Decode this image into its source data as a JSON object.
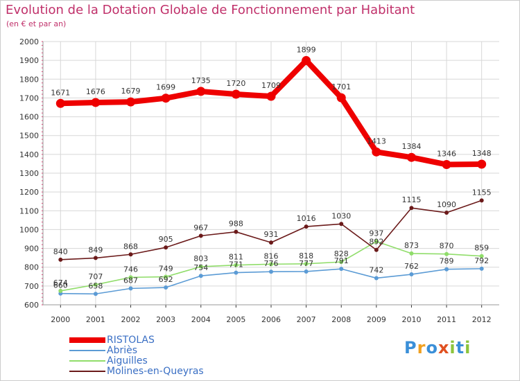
{
  "header": {
    "title": "Evolution de la Dotation Globale de Fonctionnement par Habitant",
    "subtitle": "(en € et par an)"
  },
  "logo": {
    "text": "Proxiti",
    "letters": [
      "P",
      "r",
      "o",
      "x",
      "i",
      "t",
      "i"
    ],
    "colors": [
      "#3a8fd8",
      "#f0a020",
      "#3a8fd8",
      "#e05020",
      "#8cc43c",
      "#3a8fd8",
      "#8cc43c"
    ]
  },
  "colors": {
    "ristolas": "#ee0000",
    "abries": "#5b9bd5",
    "aiguilles": "#90dd6a",
    "molines": "#6b1a1a",
    "grid": "#d7d7d7",
    "axis_text": "#333333",
    "tick_mark": "#e0306a",
    "label_text": "#333333"
  },
  "chart_data": {
    "type": "line",
    "title": "Evolution de la Dotation Globale de Fonctionnement par Habitant",
    "subtitle": "(en € et par an)",
    "xlabel": "",
    "ylabel": "",
    "ylim": [
      600,
      2000
    ],
    "yticks": [
      600,
      700,
      800,
      900,
      1000,
      1100,
      1200,
      1300,
      1400,
      1500,
      1600,
      1700,
      1800,
      1900,
      2000
    ],
    "categories": [
      "2000",
      "2001",
      "2002",
      "2003",
      "2004",
      "2005",
      "2006",
      "2007",
      "2008",
      "2009",
      "2010",
      "2011",
      "2012"
    ],
    "grid": true,
    "legend_position": "bottom-left",
    "series": [
      {
        "name": "RISTOLAS",
        "key": "ristolas",
        "values": [
          1671,
          1676,
          1679,
          1699,
          1735,
          1720,
          1709,
          1899,
          1701,
          1413,
          1384,
          1346,
          1348
        ]
      },
      {
        "name": "Abriès",
        "key": "abries",
        "values": [
          660,
          658,
          687,
          692,
          754,
          771,
          776,
          777,
          791,
          742,
          762,
          789,
          792
        ]
      },
      {
        "name": "Aiguilles",
        "key": "aiguilles",
        "values": [
          674,
          707,
          746,
          749,
          803,
          811,
          816,
          818,
          828,
          937,
          873,
          870,
          859
        ]
      },
      {
        "name": "Molines-en-Queyras",
        "key": "molines",
        "values": [
          840,
          849,
          868,
          905,
          967,
          988,
          931,
          1016,
          1030,
          892,
          1115,
          1090,
          1155
        ]
      }
    ]
  }
}
